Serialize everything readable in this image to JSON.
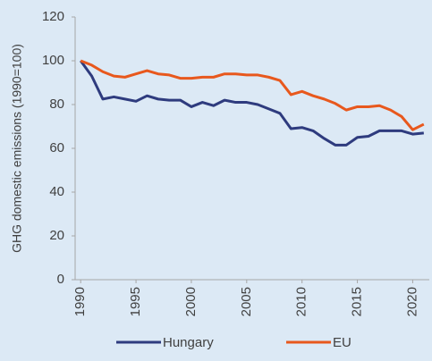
{
  "chart_data": {
    "type": "line",
    "y_label": "GHG domestic emissions (1990=100)",
    "x": [
      1990,
      1991,
      1992,
      1993,
      1994,
      1995,
      1996,
      1997,
      1998,
      1999,
      2000,
      2001,
      2002,
      2003,
      2004,
      2005,
      2006,
      2007,
      2008,
      2009,
      2010,
      2011,
      2012,
      2013,
      2014,
      2015,
      2016,
      2017,
      2018,
      2019,
      2020,
      2021
    ],
    "series": [
      {
        "name": "Hungary",
        "color": "#2e3b7e",
        "values": [
          100,
          93,
          82.5,
          83.5,
          82.5,
          81.5,
          84,
          82.5,
          82,
          82,
          79,
          81,
          79.5,
          82,
          81,
          81,
          80,
          78,
          76,
          69,
          69.5,
          68,
          64.5,
          61.5,
          61.5,
          65,
          65.5,
          68,
          68,
          68,
          66.5,
          67
        ]
      },
      {
        "name": "EU",
        "color": "#e8581d",
        "values": [
          100,
          98,
          95,
          93,
          92.5,
          94,
          95.5,
          94,
          93.5,
          92,
          92,
          92.5,
          92.5,
          94,
          94,
          93.5,
          93.5,
          92.5,
          91,
          84.5,
          86,
          84,
          82.5,
          80.5,
          77.5,
          79,
          79,
          79.5,
          77.5,
          74.5,
          68.5,
          71
        ]
      }
    ],
    "xlim": [
      1989.5,
      2021.5
    ],
    "xticks": [
      1990,
      1995,
      2000,
      2005,
      2010,
      2015,
      2020
    ],
    "ylim": [
      0,
      120
    ],
    "yticks": [
      0,
      20,
      40,
      60,
      80,
      100,
      120
    ],
    "background": "#dce9f5"
  }
}
